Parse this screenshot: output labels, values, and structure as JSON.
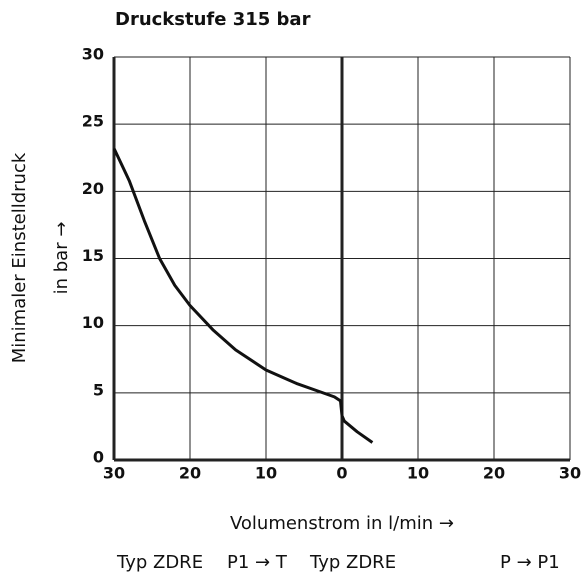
{
  "chart_data": {
    "type": "line",
    "title": "Druckstufe 315 bar",
    "xlabel": "Volumenstrom in l/min →",
    "ylabel": [
      "Minimaler Einstelldruck",
      "in bar →"
    ],
    "footer": [
      "Typ ZDRE",
      "P1 → T",
      "Typ ZDRE",
      "P → P1"
    ],
    "x": [
      -30,
      -28,
      -26,
      -24,
      -22,
      -20,
      -17,
      -14,
      -10,
      -6,
      -3,
      -1,
      -0.2,
      0,
      0.3,
      2,
      4
    ],
    "series": [
      {
        "color": "#111111",
        "values": [
          23.2,
          20.8,
          17.8,
          15.0,
          13.0,
          11.5,
          9.7,
          8.2,
          6.7,
          5.7,
          5.1,
          4.7,
          4.4,
          3.3,
          2.9,
          2.1,
          1.3
        ]
      }
    ],
    "xlim": [
      -30,
      30
    ],
    "xticks": [
      {
        "value": -30,
        "label": "30"
      },
      {
        "value": -20,
        "label": "20"
      },
      {
        "value": -10,
        "label": "10"
      },
      0,
      10,
      20,
      30
    ],
    "ylim": [
      0,
      30
    ],
    "yticks": [
      0,
      5,
      10,
      15,
      20,
      25,
      30
    ],
    "grid": true
  }
}
